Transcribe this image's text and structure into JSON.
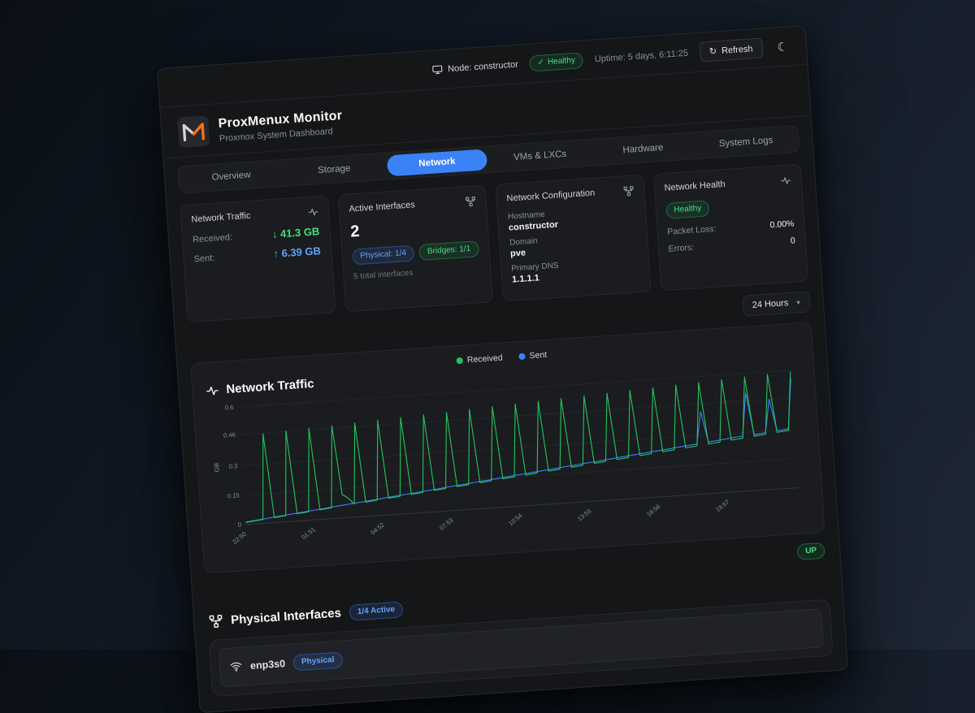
{
  "topbar": {
    "node_label": "Node: constructor",
    "health_badge": "Healthy",
    "uptime": "Uptime: 5 days, 6:11:25",
    "refresh_label": "Refresh"
  },
  "header": {
    "title": "ProxMenux Monitor",
    "subtitle": "Proxmox System Dashboard"
  },
  "tabs": [
    {
      "label": "Overview"
    },
    {
      "label": "Storage"
    },
    {
      "label": "Network"
    },
    {
      "label": "VMs & LXCs"
    },
    {
      "label": "Hardware"
    },
    {
      "label": "System Logs"
    }
  ],
  "active_tab": "Network",
  "cards": {
    "traffic": {
      "title": "Network Traffic",
      "received_label": "Received:",
      "received_value": "↓ 41.3 GB",
      "sent_label": "Sent:",
      "sent_value": "↑ 6.39 GB"
    },
    "interfaces": {
      "title": "Active Interfaces",
      "value": "2",
      "physical_badge": "Physical: 1/4",
      "bridges_badge": "Bridges: 1/1",
      "footnote": "5 total interfaces"
    },
    "config": {
      "title": "Network Configuration",
      "hostname_label": "Hostname",
      "hostname_value": "constructor",
      "domain_label": "Domain",
      "domain_value": "pve",
      "dns_label": "Primary DNS",
      "dns_value": "1.1.1.1"
    },
    "health": {
      "title": "Network Health",
      "status_badge": "Healthy",
      "packet_loss_label": "Packet Loss:",
      "packet_loss_value": "0.00%",
      "errors_label": "Errors:",
      "errors_value": "0"
    }
  },
  "time_range": {
    "selected": "24 Hours"
  },
  "traffic_chart": {
    "title": "Network Traffic",
    "legend_received": "Received",
    "legend_sent": "Sent"
  },
  "bridge_status": {
    "up_badge": "UP"
  },
  "physical_section": {
    "title": "Physical Interfaces",
    "active_badge": "1/4 Active",
    "interfaces": [
      {
        "name": "enp3s0",
        "type_badge": "Physical"
      }
    ]
  },
  "colors": {
    "accent_blue": "#3b82f6",
    "green": "#22c55e",
    "card_bg": "#1a1c1f"
  },
  "chart_data": {
    "type": "line",
    "title": "Network Traffic",
    "xlabel": "",
    "ylabel": "GB",
    "ylim": [
      0,
      0.6
    ],
    "yticks": [
      0,
      0.15,
      0.3,
      0.46,
      0.6
    ],
    "xticklabels": [
      "22:50",
      "01:51",
      "04:52",
      "07:53",
      "10:54",
      "13:55",
      "16:56",
      "19:57"
    ],
    "xtick_every": 12,
    "grid": true,
    "legend_position": "top-center",
    "series": [
      {
        "name": "Sent",
        "color": "#3b82f6",
        "values": [
          0.012,
          0.015,
          0.018,
          0.021,
          0.024,
          0.028,
          0.031,
          0.034,
          0.037,
          0.04,
          0.043,
          0.046,
          0.049,
          0.052,
          0.055,
          0.059,
          0.062,
          0.065,
          0.068,
          0.071,
          0.074,
          0.077,
          0.08,
          0.083,
          0.086,
          0.09,
          0.093,
          0.096,
          0.099,
          0.102,
          0.105,
          0.108,
          0.111,
          0.114,
          0.117,
          0.121,
          0.124,
          0.127,
          0.13,
          0.133,
          0.136,
          0.139,
          0.142,
          0.145,
          0.148,
          0.152,
          0.155,
          0.158,
          0.161,
          0.164,
          0.167,
          0.17,
          0.173,
          0.176,
          0.179,
          0.183,
          0.186,
          0.189,
          0.192,
          0.195,
          0.198,
          0.201,
          0.204,
          0.207,
          0.21,
          0.214,
          0.217,
          0.22,
          0.223,
          0.226,
          0.229,
          0.232,
          0.235,
          0.238,
          0.241,
          0.245,
          0.248,
          0.251,
          0.254,
          0.257,
          0.42,
          0.263,
          0.266,
          0.269,
          0.272,
          0.276,
          0.279,
          0.282,
          0.5,
          0.285,
          0.288,
          0.291,
          0.46,
          0.297,
          0.3,
          0.303,
          0.56
        ]
      },
      {
        "name": "Received",
        "color": "#22c55e",
        "values": [
          0.01,
          0.013,
          0.016,
          0.019,
          0.456,
          0.025,
          0.028,
          0.031,
          0.462,
          0.037,
          0.04,
          0.043,
          0.468,
          0.049,
          0.052,
          0.055,
          0.474,
          0.12,
          0.1,
          0.067,
          0.48,
          0.073,
          0.076,
          0.079,
          0.486,
          0.085,
          0.088,
          0.091,
          0.492,
          0.097,
          0.1,
          0.103,
          0.498,
          0.109,
          0.112,
          0.115,
          0.504,
          0.121,
          0.124,
          0.127,
          0.51,
          0.133,
          0.136,
          0.139,
          0.516,
          0.145,
          0.148,
          0.151,
          0.522,
          0.157,
          0.16,
          0.163,
          0.528,
          0.169,
          0.172,
          0.175,
          0.534,
          0.181,
          0.184,
          0.187,
          0.54,
          0.193,
          0.196,
          0.199,
          0.546,
          0.205,
          0.208,
          0.211,
          0.552,
          0.217,
          0.22,
          0.223,
          0.558,
          0.229,
          0.232,
          0.235,
          0.564,
          0.241,
          0.244,
          0.247,
          0.57,
          0.253,
          0.256,
          0.259,
          0.576,
          0.265,
          0.268,
          0.271,
          0.582,
          0.277,
          0.28,
          0.283,
          0.588,
          0.289,
          0.292,
          0.295,
          0.594
        ]
      }
    ]
  }
}
